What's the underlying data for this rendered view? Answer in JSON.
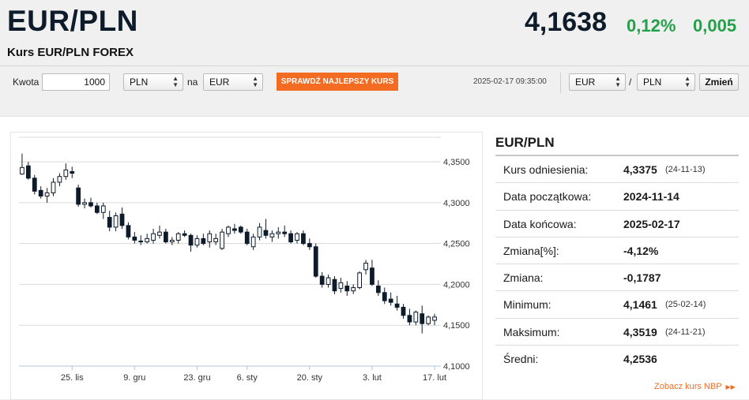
{
  "header": {
    "pair": "EUR/PLN",
    "subtitle": "Kurs EUR/PLN FOREX",
    "rate": "4,1638",
    "change_pct": "0,12%",
    "change_abs": "0,005"
  },
  "toolbar": {
    "amount_label": "Kwota",
    "amount_value": "1000",
    "from_currency": "PLN",
    "to_label": "na",
    "to_currency": "EUR",
    "best_rate_button": "SPRAWDŹ NAJLEPSZY KURS",
    "datetime": "2025-02-17 09:35:00",
    "pair_base": "EUR",
    "pair_sep": "/",
    "pair_quote": "PLN",
    "change_button": "Zmień"
  },
  "info": {
    "title": "EUR/PLN",
    "rows": [
      {
        "label": "Kurs odniesienia:",
        "value": "4,3375",
        "date": "(24-11-13)"
      },
      {
        "label": "Data początkowa:",
        "value": "2024-11-14",
        "date": ""
      },
      {
        "label": "Data końcowa:",
        "value": "2025-02-17",
        "date": ""
      },
      {
        "label": "Zmiana[%]:",
        "value": "-4,12%",
        "date": ""
      },
      {
        "label": "Zmiana:",
        "value": "-0,1787",
        "date": ""
      },
      {
        "label": "Minimum:",
        "value": "4,1461",
        "date": "(25-02-14)"
      },
      {
        "label": "Maksimum:",
        "value": "4,3519",
        "date": "(24-11-21)"
      },
      {
        "label": "Średni:",
        "value": "4,2536",
        "date": ""
      }
    ],
    "nbp_link": "Zobacz kurs NBP"
  },
  "colors": {
    "accent": "#f36c21",
    "positive": "#23a14a",
    "candle_down": "#0d1b2a",
    "candle_up": "#ffffff"
  },
  "chart_data": {
    "type": "candlestick",
    "y_ticks": [
      "4,1000",
      "4,1500",
      "4,2000",
      "4,2500",
      "4,3000",
      "4,3500"
    ],
    "y_tick_values": [
      4.1,
      4.15,
      4.2,
      4.25,
      4.3,
      4.35
    ],
    "ylim": [
      4.1,
      4.38
    ],
    "x_ticks": [
      {
        "label": "25. lis",
        "index": 8
      },
      {
        "label": "9. gru",
        "index": 18
      },
      {
        "label": "23. gru",
        "index": 28
      },
      {
        "label": "6. sty",
        "index": 36
      },
      {
        "label": "20. sty",
        "index": 46
      },
      {
        "label": "3. lut",
        "index": 56
      },
      {
        "label": "17. lut",
        "index": 66
      }
    ],
    "ohlc": [
      [
        4.335,
        4.36,
        4.334,
        4.343
      ],
      [
        4.345,
        4.35,
        4.328,
        4.33
      ],
      [
        4.33,
        4.334,
        4.31,
        4.314
      ],
      [
        4.315,
        4.32,
        4.305,
        4.308
      ],
      [
        4.308,
        4.318,
        4.3,
        4.312
      ],
      [
        4.312,
        4.33,
        4.308,
        4.325
      ],
      [
        4.325,
        4.336,
        4.32,
        4.332
      ],
      [
        4.332,
        4.348,
        4.328,
        4.34
      ],
      [
        4.338,
        4.344,
        4.33,
        4.336
      ],
      [
        4.318,
        4.322,
        4.295,
        4.298
      ],
      [
        4.298,
        4.305,
        4.293,
        4.3
      ],
      [
        4.3,
        4.306,
        4.294,
        4.296
      ],
      [
        4.296,
        4.3,
        4.286,
        4.288
      ],
      [
        4.288,
        4.3,
        4.28,
        4.296
      ],
      [
        4.282,
        4.29,
        4.265,
        4.27
      ],
      [
        4.27,
        4.288,
        4.265,
        4.284
      ],
      [
        4.286,
        4.294,
        4.268,
        4.272
      ],
      [
        4.272,
        4.276,
        4.255,
        4.258
      ],
      [
        4.258,
        4.264,
        4.25,
        4.254
      ],
      [
        4.253,
        4.26,
        4.248,
        4.252
      ],
      [
        4.252,
        4.262,
        4.25,
        4.256
      ],
      [
        4.254,
        4.268,
        4.25,
        4.262
      ],
      [
        4.26,
        4.272,
        4.256,
        4.264
      ],
      [
        4.264,
        4.268,
        4.25,
        4.252
      ],
      [
        4.252,
        4.258,
        4.248,
        4.254
      ],
      [
        4.254,
        4.264,
        4.25,
        4.262
      ],
      [
        4.262,
        4.266,
        4.258,
        4.26
      ],
      [
        4.26,
        4.262,
        4.24,
        4.248
      ],
      [
        4.248,
        4.26,
        4.245,
        4.256
      ],
      [
        4.256,
        4.262,
        4.248,
        4.25
      ],
      [
        4.252,
        4.266,
        4.245,
        4.262
      ],
      [
        4.252,
        4.262,
        4.248,
        4.256
      ],
      [
        4.244,
        4.268,
        4.242,
        4.264
      ],
      [
        4.262,
        4.272,
        4.258,
        4.27
      ],
      [
        4.268,
        4.274,
        4.262,
        4.266
      ],
      [
        4.27,
        4.272,
        4.262,
        4.264
      ],
      [
        4.264,
        4.268,
        4.248,
        4.25
      ],
      [
        4.246,
        4.262,
        4.242,
        4.258
      ],
      [
        4.258,
        4.275,
        4.254,
        4.27
      ],
      [
        4.266,
        4.28,
        4.256,
        4.26
      ],
      [
        4.258,
        4.266,
        4.252,
        4.262
      ],
      [
        4.262,
        4.27,
        4.256,
        4.264
      ],
      [
        4.264,
        4.272,
        4.258,
        4.262
      ],
      [
        4.262,
        4.266,
        4.25,
        4.252
      ],
      [
        4.254,
        4.264,
        4.25,
        4.262
      ],
      [
        4.262,
        4.266,
        4.248,
        4.25
      ],
      [
        4.25,
        4.256,
        4.242,
        4.246
      ],
      [
        4.246,
        4.25,
        4.208,
        4.21
      ],
      [
        4.21,
        4.215,
        4.196,
        4.2
      ],
      [
        4.2,
        4.212,
        4.196,
        4.208
      ],
      [
        4.206,
        4.21,
        4.188,
        4.192
      ],
      [
        4.195,
        4.208,
        4.19,
        4.202
      ],
      [
        4.198,
        4.204,
        4.186,
        4.192
      ],
      [
        4.192,
        4.2,
        4.188,
        4.196
      ],
      [
        4.196,
        4.216,
        4.194,
        4.214
      ],
      [
        4.218,
        4.23,
        4.212,
        4.226
      ],
      [
        4.22,
        4.23,
        4.198,
        4.2
      ],
      [
        4.198,
        4.205,
        4.186,
        4.19
      ],
      [
        4.19,
        4.196,
        4.176,
        4.18
      ],
      [
        4.182,
        4.19,
        4.174,
        4.178
      ],
      [
        4.176,
        4.186,
        4.168,
        4.172
      ],
      [
        4.172,
        4.176,
        4.158,
        4.162
      ],
      [
        4.162,
        4.17,
        4.15,
        4.154
      ],
      [
        4.154,
        4.168,
        4.15,
        4.166
      ],
      [
        4.164,
        4.174,
        4.14,
        4.152
      ],
      [
        4.152,
        4.162,
        4.15,
        4.16
      ],
      [
        4.156,
        4.164,
        4.15,
        4.16
      ]
    ]
  }
}
